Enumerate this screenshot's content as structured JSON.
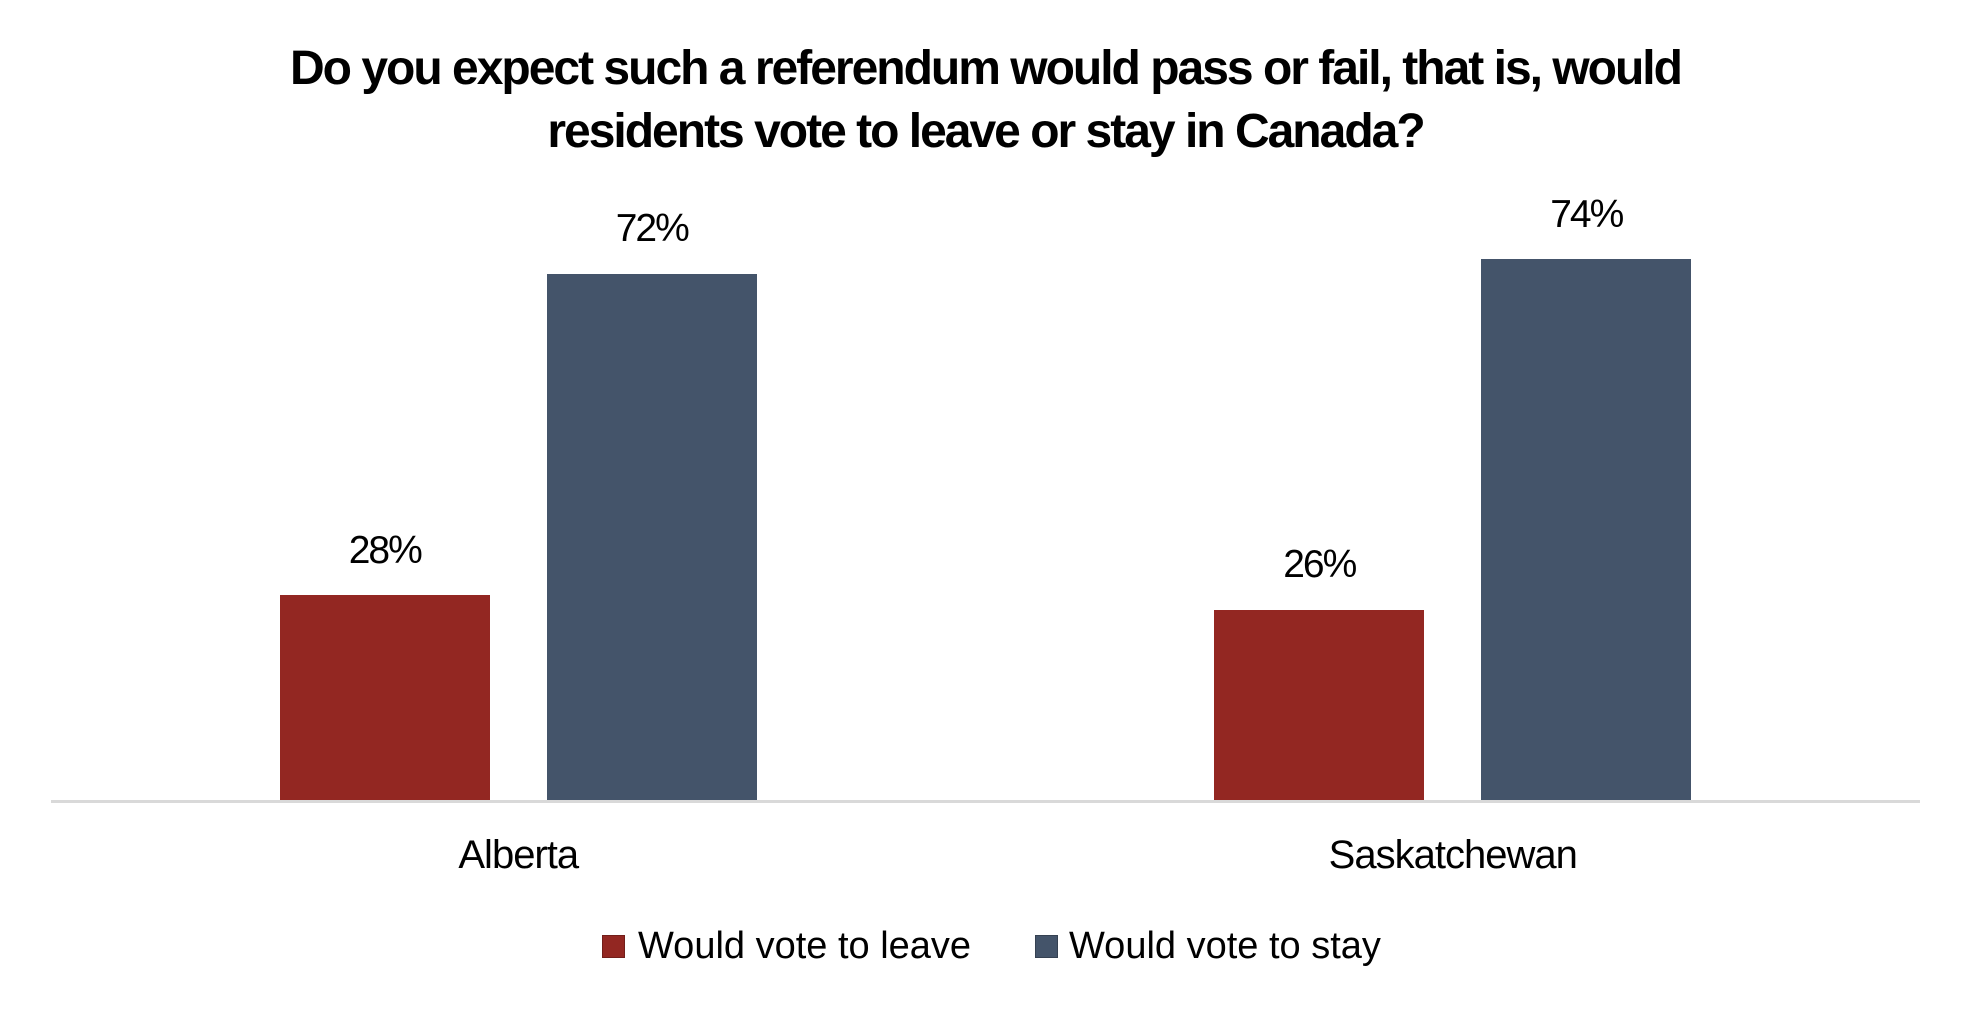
{
  "chart_data": {
    "type": "bar",
    "title": "Do you expect such a referendum would pass or fail, that is, would residents vote to leave or stay in Canada?",
    "title_lines": [
      "Do you expect such a referendum would pass or fail, that is, would",
      "residents vote to leave or stay in Canada?"
    ],
    "categories": [
      "Alberta",
      "Saskatchewan"
    ],
    "series": [
      {
        "name": "Would vote to leave",
        "values": [
          28,
          26
        ],
        "labels": [
          "28%",
          "26%"
        ],
        "color": "#932722"
      },
      {
        "name": "Would vote to stay",
        "values": [
          72,
          74
        ],
        "labels": [
          "72%",
          "74%"
        ],
        "color": "#44546A"
      }
    ],
    "xlabel": "",
    "ylabel": "",
    "ylim": [
      0,
      100
    ],
    "grid": false,
    "y_axis_visible": false,
    "legend_position": "bottom",
    "axis_line_color": "#D9D9D9",
    "text_color": "#000000",
    "background_color": "#FFFFFF"
  }
}
